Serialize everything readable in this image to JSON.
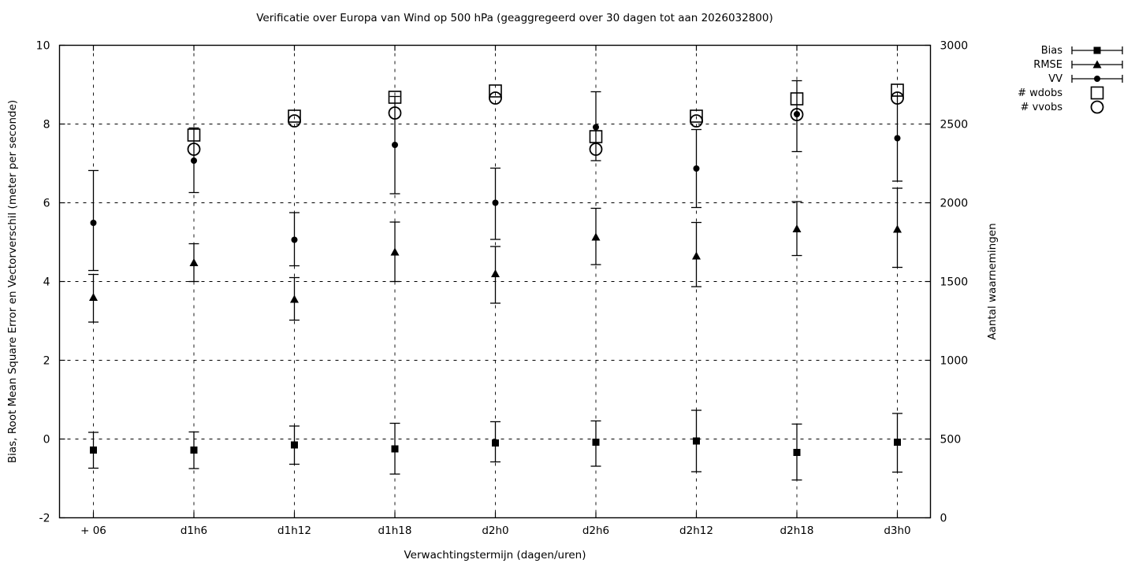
{
  "chart_data": {
    "type": "scatter",
    "title": "Verificatie over Europa van Wind op 500 hPa (geaggregeerd over 30 dagen tot aan 2026032800)",
    "xlabel": "Verwachtingstermijn (dagen/uren)",
    "ylabel_left": "Bias, Root Mean Square Error en Vectorverschil (meter per seconde)",
    "ylabel_right": "Aantal waarnemingen",
    "ylim_left": [
      -2,
      10
    ],
    "ylim_right": [
      0,
      3000
    ],
    "yticks_left": [
      -2,
      0,
      2,
      4,
      6,
      8,
      10
    ],
    "yticks_right": [
      0,
      500,
      1000,
      1500,
      2000,
      2500,
      3000
    ],
    "grid": true,
    "legend_position": "outside-top-right",
    "categories": [
      "+ 06",
      "d1h6",
      "d1h12",
      "d1h18",
      "d2h0",
      "d2h6",
      "d2h12",
      "d2h18",
      "d3h0"
    ],
    "series": [
      {
        "name": "Bias",
        "axis": "left",
        "marker": "filled-square",
        "errorbars": true,
        "values": [
          -0.28,
          -0.28,
          -0.15,
          -0.25,
          -0.1,
          -0.08,
          -0.05,
          -0.34,
          -0.08
        ],
        "err_lo": [
          -0.74,
          -0.75,
          -0.64,
          -0.89,
          -0.58,
          -0.69,
          -0.83,
          -1.04,
          -0.84
        ],
        "err_hi": [
          0.17,
          0.18,
          0.33,
          0.4,
          0.44,
          0.46,
          0.73,
          0.38,
          0.65
        ]
      },
      {
        "name": "RMSE",
        "axis": "left",
        "marker": "filled-triangle",
        "errorbars": true,
        "values": [
          3.6,
          4.48,
          3.55,
          4.75,
          4.2,
          5.13,
          4.65,
          5.34,
          5.33
        ],
        "err_lo": [
          2.97,
          4.0,
          3.02,
          4.0,
          3.45,
          4.43,
          3.87,
          4.66,
          4.36
        ],
        "err_hi": [
          4.18,
          4.96,
          4.1,
          5.51,
          4.89,
          5.86,
          5.5,
          6.03,
          6.37
        ]
      },
      {
        "name": "VV",
        "axis": "left",
        "marker": "filled-circle",
        "errorbars": true,
        "values": [
          5.49,
          7.07,
          5.06,
          7.47,
          6.0,
          7.92,
          6.87,
          8.25,
          7.64
        ],
        "err_lo": [
          4.28,
          6.26,
          4.4,
          6.23,
          5.07,
          7.07,
          5.88,
          7.3,
          6.55
        ],
        "err_hi": [
          6.82,
          7.9,
          5.75,
          8.7,
          6.88,
          8.82,
          7.86,
          9.1,
          8.71
        ]
      },
      {
        "name": "# wdobs",
        "axis": "right",
        "marker": "open-square",
        "errorbars": false,
        "values": [
          null,
          2430,
          2550,
          2670,
          2710,
          2420,
          2550,
          2660,
          2715
        ]
      },
      {
        "name": "# vvobs",
        "axis": "right",
        "marker": "open-circle",
        "errorbars": false,
        "values": [
          null,
          2340,
          2520,
          2570,
          2665,
          2340,
          2520,
          2560,
          2665
        ]
      }
    ],
    "legend": [
      "Bias",
      "RMSE",
      "VV",
      "# wdobs",
      "# vvobs"
    ],
    "colors": {
      "foreground": "#000000",
      "background": "#ffffff"
    }
  }
}
